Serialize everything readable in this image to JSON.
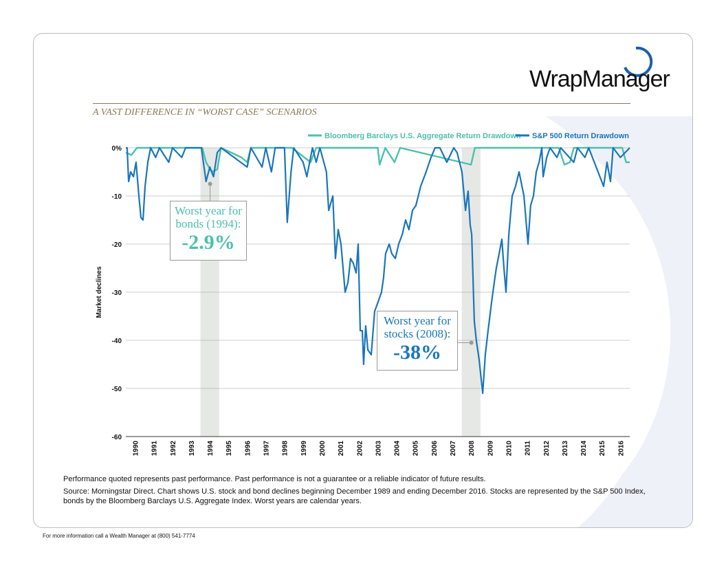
{
  "brand": {
    "name": "WrapManager",
    "colors": {
      "bond": "#4cbfad",
      "stock": "#1a75bc",
      "title": "#8b7a5a"
    }
  },
  "header": {
    "title": "A VAST DIFFERENCE IN “WORST CASE” SCENARIOS"
  },
  "chart_data": {
    "type": "line",
    "ylabel": "Market declines",
    "ylim": [
      -60,
      0
    ],
    "yticks": [
      "0%",
      "-10",
      "-20",
      "-30",
      "-40",
      "-50",
      "-60"
    ],
    "xlim": [
      1990,
      2017
    ],
    "xticks": [
      "1990",
      "1991",
      "1992",
      "1993",
      "1994",
      "1995",
      "1996",
      "1997",
      "1998",
      "1999",
      "2000",
      "2001",
      "2002",
      "2003",
      "2004",
      "2005",
      "2006",
      "2007",
      "2008",
      "2009",
      "2010",
      "2011",
      "2012",
      "2013",
      "2014",
      "2015",
      "2016"
    ],
    "grid": "horizontal",
    "legend_position": "top-right",
    "shaded_years": [
      1994,
      2008
    ],
    "series": [
      {
        "name": "Bloomberg Barclays U.S. Aggregate Return Drawdown",
        "color": "#4cbfad",
        "points": [
          [
            1990,
            -1
          ],
          [
            1990.3,
            -1.5
          ],
          [
            1990.6,
            0
          ],
          [
            1994.1,
            0
          ],
          [
            1994.3,
            -3
          ],
          [
            1994.6,
            -5
          ],
          [
            1994.9,
            -4.5
          ],
          [
            1995.1,
            0
          ],
          [
            1996.2,
            -2
          ],
          [
            1996.5,
            -3
          ],
          [
            1996.7,
            0
          ],
          [
            1998.9,
            0
          ],
          [
            1999.4,
            -1.5
          ],
          [
            1999.9,
            -3
          ],
          [
            2000.2,
            0
          ],
          [
            2003.5,
            0
          ],
          [
            2003.6,
            -3.5
          ],
          [
            2003.9,
            0
          ],
          [
            2004.4,
            -3
          ],
          [
            2004.7,
            0
          ],
          [
            2008.5,
            -3.5
          ],
          [
            2008.7,
            0
          ],
          [
            2013.2,
            0
          ],
          [
            2013.5,
            -3.5
          ],
          [
            2013.8,
            -3
          ],
          [
            2014,
            0
          ],
          [
            2016.6,
            0
          ],
          [
            2016.8,
            -3
          ],
          [
            2017,
            -3
          ]
        ]
      },
      {
        "name": "S&P 500 Return Drawdown",
        "color": "#1a75bc",
        "points": [
          [
            1990,
            0
          ],
          [
            1990.07,
            0
          ],
          [
            1990.15,
            -7
          ],
          [
            1990.26,
            -5
          ],
          [
            1990.41,
            -6
          ],
          [
            1990.55,
            -3
          ],
          [
            1990.7,
            -10
          ],
          [
            1990.81,
            -14.5
          ],
          [
            1990.92,
            -15
          ],
          [
            1991.03,
            -8
          ],
          [
            1991.18,
            -3
          ],
          [
            1991.33,
            0
          ],
          [
            1991.6,
            -2
          ],
          [
            1991.8,
            0
          ],
          [
            1992.3,
            -3
          ],
          [
            1992.5,
            0
          ],
          [
            1993,
            -2
          ],
          [
            1993.2,
            0
          ],
          [
            1994.05,
            0
          ],
          [
            1994.3,
            -7
          ],
          [
            1994.5,
            -4
          ],
          [
            1994.7,
            -6
          ],
          [
            1994.9,
            -1
          ],
          [
            1995.1,
            0
          ],
          [
            1996.5,
            -4
          ],
          [
            1996.7,
            0
          ],
          [
            1997.3,
            -4
          ],
          [
            1997.5,
            0
          ],
          [
            1997.8,
            -5
          ],
          [
            1998,
            0
          ],
          [
            1998.5,
            0
          ],
          [
            1998.65,
            -15.5
          ],
          [
            1998.85,
            -5
          ],
          [
            1999,
            0
          ],
          [
            1999.5,
            -3
          ],
          [
            1999.7,
            -6
          ],
          [
            2000,
            0
          ],
          [
            2000.2,
            -3
          ],
          [
            2000.4,
            0
          ],
          [
            2000.75,
            -5
          ],
          [
            2000.87,
            -13
          ],
          [
            2001.09,
            -10
          ],
          [
            2001.23,
            -23
          ],
          [
            2001.38,
            -17
          ],
          [
            2001.53,
            -20
          ],
          [
            2001.75,
            -30
          ],
          [
            2001.9,
            -28
          ],
          [
            2002.04,
            -23
          ],
          [
            2002.19,
            -24
          ],
          [
            2002.34,
            -26
          ],
          [
            2002.45,
            -20
          ],
          [
            2002.56,
            -38
          ],
          [
            2002.67,
            -38
          ],
          [
            2002.74,
            -45
          ],
          [
            2002.85,
            -37
          ],
          [
            2002.97,
            -42
          ],
          [
            2003.15,
            -43
          ],
          [
            2003.33,
            -34
          ],
          [
            2003.52,
            -32
          ],
          [
            2003.7,
            -30
          ],
          [
            2003.81,
            -27
          ],
          [
            2003.92,
            -22
          ],
          [
            2004.11,
            -20
          ],
          [
            2004.25,
            -22
          ],
          [
            2004.44,
            -23
          ],
          [
            2004.62,
            -20
          ],
          [
            2004.81,
            -18
          ],
          [
            2004.99,
            -15
          ],
          [
            2005.17,
            -17
          ],
          [
            2005.36,
            -13
          ],
          [
            2005.54,
            -12
          ],
          [
            2005.8,
            -8
          ],
          [
            2006.09,
            -5
          ],
          [
            2006.35,
            -2
          ],
          [
            2006.57,
            0
          ],
          [
            2006.83,
            0
          ],
          [
            2007.2,
            -3
          ],
          [
            2007.57,
            0
          ],
          [
            2007.75,
            -1
          ],
          [
            2008.01,
            -5
          ],
          [
            2008.2,
            -13
          ],
          [
            2008.34,
            -9
          ],
          [
            2008.45,
            -16
          ],
          [
            2008.53,
            -18
          ],
          [
            2008.67,
            -36
          ],
          [
            2008.78,
            -40
          ],
          [
            2008.93,
            -44
          ],
          [
            2009.12,
            -51
          ],
          [
            2009.26,
            -43
          ],
          [
            2009.41,
            -38
          ],
          [
            2009.6,
            -32
          ],
          [
            2009.74,
            -28
          ],
          [
            2009.85,
            -25
          ],
          [
            2010,
            -22
          ],
          [
            2010.15,
            -19
          ],
          [
            2010.26,
            -25
          ],
          [
            2010.37,
            -30
          ],
          [
            2010.52,
            -18
          ],
          [
            2010.7,
            -10
          ],
          [
            2010.88,
            -8
          ],
          [
            2011.07,
            -5
          ],
          [
            2011.33,
            -10
          ],
          [
            2011.55,
            -20
          ],
          [
            2011.69,
            -12
          ],
          [
            2011.84,
            -10
          ],
          [
            2011.99,
            -5
          ],
          [
            2012.14,
            -3
          ],
          [
            2012.29,
            0
          ],
          [
            2012.36,
            -6
          ],
          [
            2012.55,
            -2
          ],
          [
            2012.73,
            0
          ],
          [
            2013.1,
            -2
          ],
          [
            2013.3,
            0
          ],
          [
            2014,
            -3
          ],
          [
            2014.2,
            0
          ],
          [
            2014.6,
            -2
          ],
          [
            2014.8,
            0
          ],
          [
            2015.6,
            -8
          ],
          [
            2015.78,
            -3
          ],
          [
            2015.97,
            -7
          ],
          [
            2016.11,
            0
          ],
          [
            2016.5,
            -2
          ],
          [
            2017,
            0
          ]
        ]
      }
    ],
    "annotations": [
      {
        "id": "bonds",
        "line1": "Worst year for",
        "line2": "bonds (1994):",
        "value": "-2.9%",
        "year": 1994,
        "y": -7.5
      },
      {
        "id": "stocks",
        "line1": "Worst year for",
        "line2": "stocks (2008):",
        "value": "-38%",
        "year": 2008,
        "y": -40.5
      }
    ]
  },
  "notes": {
    "disclaimer": "Performance quoted represents past performance. Past performance is not a guarantee or a reliable indicator of future results.",
    "source": "Source: Morningstar Direct. Chart shows U.S. stock and bond declines beginning December 1989 and ending December 2016. Stocks are represented by the S&P 500 Index, bonds by the Bloomberg Barclays U.S. Aggregate Index. Worst years are calendar years."
  },
  "footer": "For more information call a Wealth Manager at (800) 541-7774"
}
